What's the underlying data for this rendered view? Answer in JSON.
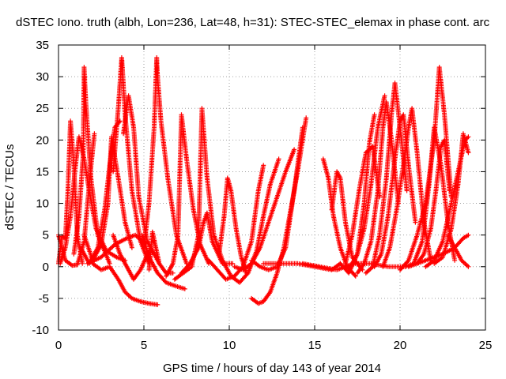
{
  "chart_data": {
    "type": "scatter",
    "title": "dSTEC Iono. truth (albh, Lon=236, Lat=48, h=31): STEC-STEC_elemax in phase cont. arc",
    "xlabel": "GPS time / hours of day 143 of year 2014",
    "ylabel": "dSTEC  / TECUs",
    "xlim": [
      0,
      25
    ],
    "ylim": [
      -10,
      35
    ],
    "xticks": [
      "0",
      "5",
      "10",
      "15",
      "20",
      "25"
    ],
    "yticks": [
      "-10",
      "-5",
      "0",
      "5",
      "10",
      "15",
      "20",
      "25",
      "30",
      "35"
    ],
    "grid": true,
    "marker": "plus",
    "color": "#ff0000",
    "arcs": [
      {
        "t": [
          0.0,
          0.2,
          0.4,
          0.55,
          0.7,
          0.9,
          1.1,
          1.4
        ],
        "v": [
          0.5,
          4.8,
          4.5,
          12.0,
          23.0,
          16.0,
          5.0,
          0.5
        ]
      },
      {
        "t": [
          0.0,
          0.4,
          0.8,
          1.1,
          1.5,
          1.8,
          2.1
        ],
        "v": [
          5.0,
          1.0,
          0.2,
          0.3,
          4.0,
          13.0,
          21.0
        ]
      },
      {
        "t": [
          0.1,
          0.4,
          0.7,
          1.0,
          1.2,
          1.5,
          1.8,
          2.2,
          2.8,
          3.4,
          3.9
        ],
        "v": [
          0.5,
          3.0,
          8.0,
          16.0,
          20.5,
          17.0,
          12.0,
          6.0,
          2.5,
          1.5,
          1.0
        ]
      },
      {
        "t": [
          0.9,
          1.2,
          1.45,
          1.5,
          1.6,
          1.9,
          2.3,
          3.0
        ],
        "v": [
          2.0,
          8.0,
          18.0,
          31.5,
          26.0,
          14.0,
          5.0,
          0.5
        ]
      },
      {
        "t": [
          1.3,
          1.8,
          2.3,
          2.7,
          3.0,
          3.3,
          3.6
        ],
        "v": [
          3.0,
          0.5,
          3.0,
          9.0,
          16.0,
          22.0,
          23.0
        ]
      },
      {
        "t": [
          1.5,
          2.0,
          2.5,
          2.9,
          3.1,
          3.5,
          3.9,
          4.3
        ],
        "v": [
          5.0,
          1.0,
          3.5,
          10.0,
          20.5,
          14.0,
          7.0,
          3.0
        ]
      },
      {
        "t": [
          1.7,
          2.5,
          3.3,
          4.0,
          4.5,
          4.9
        ],
        "v": [
          0.5,
          1.5,
          3.5,
          4.5,
          5.0,
          4.0
        ]
      },
      {
        "t": [
          3.2,
          3.5,
          3.7,
          3.75,
          3.9,
          4.3,
          4.8,
          5.3
        ],
        "v": [
          15.0,
          25.0,
          33.0,
          31.0,
          24.0,
          12.0,
          4.0,
          0.5
        ]
      },
      {
        "t": [
          3.2,
          3.6,
          4.0,
          4.4,
          4.8,
          5.3
        ],
        "v": [
          5.0,
          2.0,
          0.0,
          -2.0,
          -0.5,
          2.5
        ]
      },
      {
        "t": [
          3.8,
          4.1,
          4.4,
          4.7,
          5.2,
          5.9
        ],
        "v": [
          21.0,
          27.0,
          22.0,
          11.0,
          4.0,
          0.5
        ]
      },
      {
        "t": [
          2.0,
          2.5,
          3.0,
          3.5,
          3.9,
          4.3,
          4.8,
          5.3,
          5.8
        ],
        "v": [
          0.5,
          -0.5,
          0.0,
          -2.0,
          -4.0,
          -5.0,
          -5.5,
          -5.8,
          -6.0
        ]
      },
      {
        "t": [
          5.0,
          5.3,
          5.6,
          5.75,
          5.8,
          6.0,
          6.4,
          6.9,
          7.5
        ],
        "v": [
          3.0,
          10.0,
          22.0,
          33.0,
          30.0,
          23.0,
          14.0,
          5.0,
          0.5
        ]
      },
      {
        "t": [
          5.3,
          5.5,
          5.7,
          5.9,
          6.3,
          6.7
        ],
        "v": [
          -0.5,
          5.5,
          3.0,
          0.5,
          -1.0,
          -1.0
        ]
      },
      {
        "t": [
          4.9,
          5.3,
          5.8,
          6.3,
          6.8,
          7.4
        ],
        "v": [
          5.0,
          1.5,
          -1.0,
          -2.5,
          -3.0,
          -3.5
        ]
      },
      {
        "t": [
          6.3,
          6.7,
          7.0,
          7.2,
          7.5,
          7.9,
          8.3,
          8.8
        ],
        "v": [
          -1.5,
          0.5,
          5.0,
          24.0,
          17.0,
          9.0,
          3.5,
          0.5
        ]
      },
      {
        "t": [
          6.8,
          7.3,
          7.8,
          8.2,
          8.4,
          8.7,
          9.1,
          9.6
        ],
        "v": [
          -2.0,
          -1.0,
          0.0,
          5.0,
          25.0,
          14.0,
          5.0,
          1.0
        ]
      },
      {
        "t": [
          7.2,
          7.7,
          8.2,
          8.5,
          8.7,
          9.0,
          9.6,
          10.2
        ],
        "v": [
          -1.0,
          0.5,
          3.0,
          7.0,
          8.5,
          4.0,
          0.5,
          0.5
        ]
      },
      {
        "t": [
          9.4,
          9.7,
          9.9,
          10.1,
          10.4,
          10.7,
          11.0
        ],
        "v": [
          2.0,
          8.0,
          14.0,
          12.0,
          6.0,
          1.5,
          -1.0
        ]
      },
      {
        "t": [
          8.8,
          9.3,
          9.8,
          10.3,
          10.8,
          11.3,
          11.7,
          12.0
        ],
        "v": [
          1.0,
          -0.5,
          -2.0,
          -1.5,
          0.0,
          4.0,
          12.0,
          16.0
        ]
      },
      {
        "t": [
          9.6,
          10.1,
          10.6,
          11.1,
          11.6,
          12.0,
          12.4,
          12.9
        ],
        "v": [
          1.0,
          -1.5,
          -2.5,
          -1.0,
          2.5,
          8.0,
          13.0,
          17.0
        ]
      },
      {
        "t": [
          10.3,
          10.8,
          11.3,
          11.8,
          12.3,
          12.8,
          13.3,
          13.8
        ],
        "v": [
          0.0,
          -0.5,
          0.5,
          3.0,
          7.0,
          11.0,
          15.0,
          18.5
        ]
      },
      {
        "t": [
          11.3,
          11.8,
          12.3,
          12.8,
          13.3,
          13.8,
          14.3
        ],
        "v": [
          1.0,
          0.0,
          -0.5,
          0.0,
          3.0,
          12.0,
          22.0
        ]
      },
      {
        "t": [
          11.3,
          11.7,
          12.0,
          12.4,
          12.8,
          13.2,
          13.6,
          14.0,
          14.5
        ],
        "v": [
          -5.0,
          -5.8,
          -5.5,
          -4.0,
          -1.0,
          3.0,
          9.0,
          15.0,
          23.5
        ]
      },
      {
        "t": [
          12.0,
          13.0,
          14.0,
          15.0,
          16.0,
          16.5
        ],
        "v": [
          0.5,
          0.5,
          0.5,
          0.0,
          -0.5,
          0.5
        ]
      },
      {
        "t": [
          14.3,
          15.3,
          16.3,
          17.3,
          18.3,
          19.3,
          20.3
        ],
        "v": [
          0.5,
          0.0,
          -0.5,
          0.5,
          0.5,
          0.0,
          0.0
        ]
      },
      {
        "t": [
          15.5,
          15.8,
          16.1,
          16.5,
          16.9,
          17.4
        ],
        "v": [
          17.0,
          14.0,
          8.0,
          3.0,
          0.0,
          -1.5
        ]
      },
      {
        "t": [
          16.0,
          16.3,
          16.5,
          16.8,
          17.2,
          17.8
        ],
        "v": [
          9.0,
          15.0,
          14.0,
          7.0,
          1.5,
          -0.5
        ]
      },
      {
        "t": [
          16.5,
          17.0,
          17.5,
          17.9,
          18.2,
          18.5
        ],
        "v": [
          0.5,
          -1.0,
          2.0,
          10.0,
          19.5,
          24.0
        ]
      },
      {
        "t": [
          16.8,
          17.2,
          17.6,
          18.0,
          18.4,
          18.8
        ],
        "v": [
          0.5,
          5.0,
          12.0,
          18.0,
          19.0,
          11.0
        ]
      },
      {
        "t": [
          17.1,
          17.5,
          17.9,
          18.3,
          18.7,
          19.1
        ],
        "v": [
          0.0,
          2.0,
          6.0,
          13.0,
          22.0,
          27.0
        ]
      },
      {
        "t": [
          17.5,
          17.9,
          18.3,
          18.7,
          19.0,
          19.2,
          19.5,
          19.9
        ],
        "v": [
          -1.0,
          0.5,
          4.0,
          12.0,
          22.0,
          26.0,
          20.0,
          10.0
        ]
      },
      {
        "t": [
          18.0,
          18.4,
          18.8,
          19.2,
          19.5,
          19.7,
          20.0,
          20.4
        ],
        "v": [
          -1.0,
          0.0,
          5.0,
          14.0,
          24.0,
          29.0,
          22.0,
          12.0
        ]
      },
      {
        "t": [
          18.5,
          18.9,
          19.3,
          19.7,
          20.0,
          20.2,
          20.5,
          20.9
        ],
        "v": [
          0.0,
          2.0,
          8.0,
          17.0,
          23.0,
          24.0,
          16.0,
          7.0
        ]
      },
      {
        "t": [
          19.0,
          19.4,
          19.8,
          20.2,
          20.5,
          20.7,
          21.0,
          21.4,
          21.8
        ],
        "v": [
          0.0,
          3.0,
          9.0,
          16.0,
          22.0,
          25.0,
          18.0,
          7.0,
          1.0
        ]
      },
      {
        "t": [
          20.0,
          20.5,
          21.0,
          21.5,
          22.0,
          22.3,
          22.6,
          23.0
        ],
        "v": [
          -0.5,
          1.0,
          5.0,
          10.0,
          20.0,
          31.5,
          24.0,
          11.0
        ]
      },
      {
        "t": [
          20.3,
          20.8,
          21.3,
          21.7,
          22.0,
          22.4,
          22.8,
          23.2
        ],
        "v": [
          0.0,
          0.5,
          4.0,
          13.0,
          22.0,
          16.0,
          7.0,
          1.0
        ]
      },
      {
        "t": [
          21.0,
          21.4,
          21.8,
          22.1,
          22.4,
          22.6,
          22.9
        ],
        "v": [
          0.5,
          2.0,
          6.0,
          12.0,
          19.0,
          20.0,
          12.0
        ]
      },
      {
        "t": [
          21.5,
          22.0,
          22.5,
          23.0,
          23.4,
          23.8,
          24.0
        ],
        "v": [
          0.0,
          1.0,
          4.0,
          10.0,
          15.0,
          20.0,
          20.5
        ]
      },
      {
        "t": [
          22.0,
          22.5,
          23.0,
          23.4,
          23.7,
          24.0
        ],
        "v": [
          0.5,
          1.5,
          6.0,
          13.0,
          21.0,
          18.0
        ]
      },
      {
        "t": [
          20.5,
          21.5,
          22.5,
          23.2,
          23.7,
          24.0
        ],
        "v": [
          0.0,
          1.0,
          2.0,
          3.0,
          4.5,
          5.0
        ]
      },
      {
        "t": [
          22.8,
          23.2,
          23.6,
          24.0
        ],
        "v": [
          5.0,
          3.0,
          1.0,
          0.0
        ]
      }
    ]
  }
}
